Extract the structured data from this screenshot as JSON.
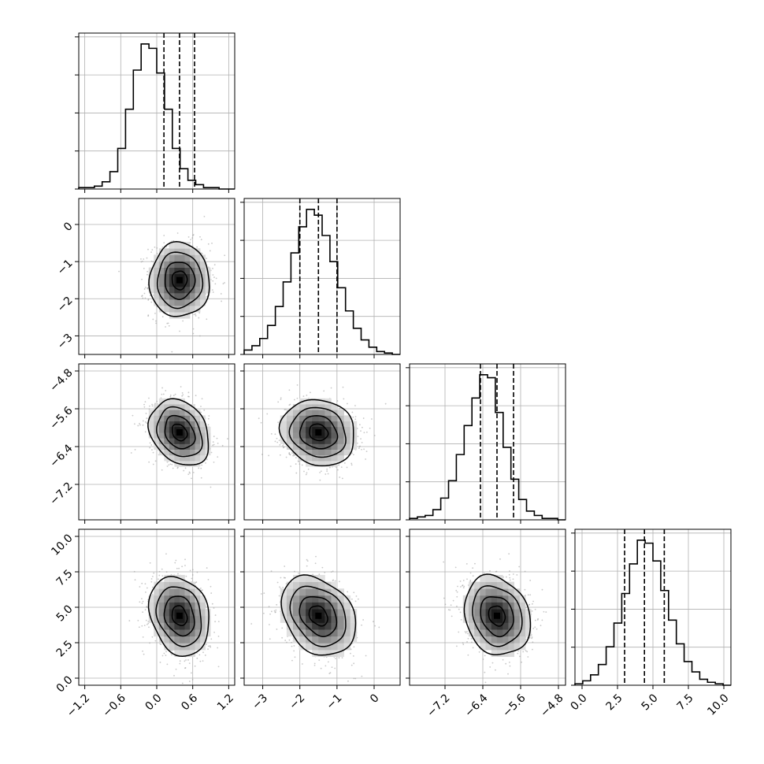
{
  "chart_data": {
    "type": "corner",
    "parameters": [
      {
        "mean": 0.38,
        "sigma": 0.25,
        "range": [
          -1.3,
          1.3
        ],
        "quantiles": [
          0.12,
          0.38,
          0.63
        ],
        "ticks": [
          -1.2,
          -0.6,
          0.0,
          0.6,
          1.2
        ],
        "tick_labels": [
          "−1.2",
          "−0.6",
          "0.0",
          "0.6",
          "1.2"
        ]
      },
      {
        "mean": -1.5,
        "sigma": 0.5,
        "range": [
          -3.5,
          0.7
        ],
        "quantiles": [
          -2.0,
          -1.5,
          -1.0
        ],
        "ticks": [
          -3,
          -2,
          -1,
          0
        ],
        "tick_labels": [
          "−3",
          "−2",
          "−1",
          "0"
        ]
      },
      {
        "mean": -6.1,
        "sigma": 0.35,
        "range": [
          -7.95,
          -4.65
        ],
        "quantiles": [
          -6.45,
          -6.1,
          -5.75
        ],
        "ticks": [
          -7.2,
          -6.4,
          -5.6,
          -4.8
        ],
        "tick_labels": [
          "−7.2",
          "−6.4",
          "−5.6",
          "−4.8"
        ]
      },
      {
        "mean": 4.4,
        "sigma": 1.4,
        "range": [
          -0.5,
          10.5
        ],
        "quantiles": [
          3.0,
          4.4,
          5.8
        ],
        "ticks": [
          0.0,
          2.5,
          5.0,
          7.5,
          10.0
        ],
        "tick_labels": [
          "0.0",
          "2.5",
          "5.0",
          "7.5",
          "10.0"
        ]
      }
    ],
    "histograms": [
      {
        "bins": 20,
        "counts": [
          1,
          1,
          2,
          5,
          12,
          28,
          55,
          82,
          100,
          97,
          80,
          55,
          28,
          14,
          6,
          3,
          1,
          1,
          0,
          0
        ]
      },
      {
        "bins": 20,
        "counts": [
          3,
          6,
          11,
          20,
          33,
          50,
          70,
          88,
          100,
          96,
          82,
          64,
          46,
          30,
          18,
          10,
          5,
          2,
          1,
          0
        ]
      },
      {
        "bins": 20,
        "counts": [
          1,
          2,
          3,
          7,
          15,
          27,
          45,
          65,
          84,
          100,
          98,
          74,
          50,
          28,
          14,
          6,
          3,
          1,
          1,
          0
        ]
      },
      {
        "bins": 20,
        "counts": [
          1,
          3,
          7,
          14,
          26,
          42,
          62,
          82,
          98,
          96,
          84,
          64,
          44,
          28,
          16,
          9,
          4,
          2,
          1,
          0
        ]
      }
    ],
    "pairs": [
      {
        "x": 0,
        "y": 1,
        "rho": 0.0
      },
      {
        "x": 0,
        "y": 2,
        "rho": -0.25
      },
      {
        "x": 1,
        "y": 2,
        "rho": -0.12
      },
      {
        "x": 0,
        "y": 3,
        "rho": -0.2
      },
      {
        "x": 1,
        "y": 3,
        "rho": -0.28
      },
      {
        "x": 2,
        "y": 3,
        "rho": -0.18
      }
    ],
    "contour_levels_sigma": [
      0.5,
      1.0,
      1.5,
      2.0
    ],
    "grid": true
  }
}
